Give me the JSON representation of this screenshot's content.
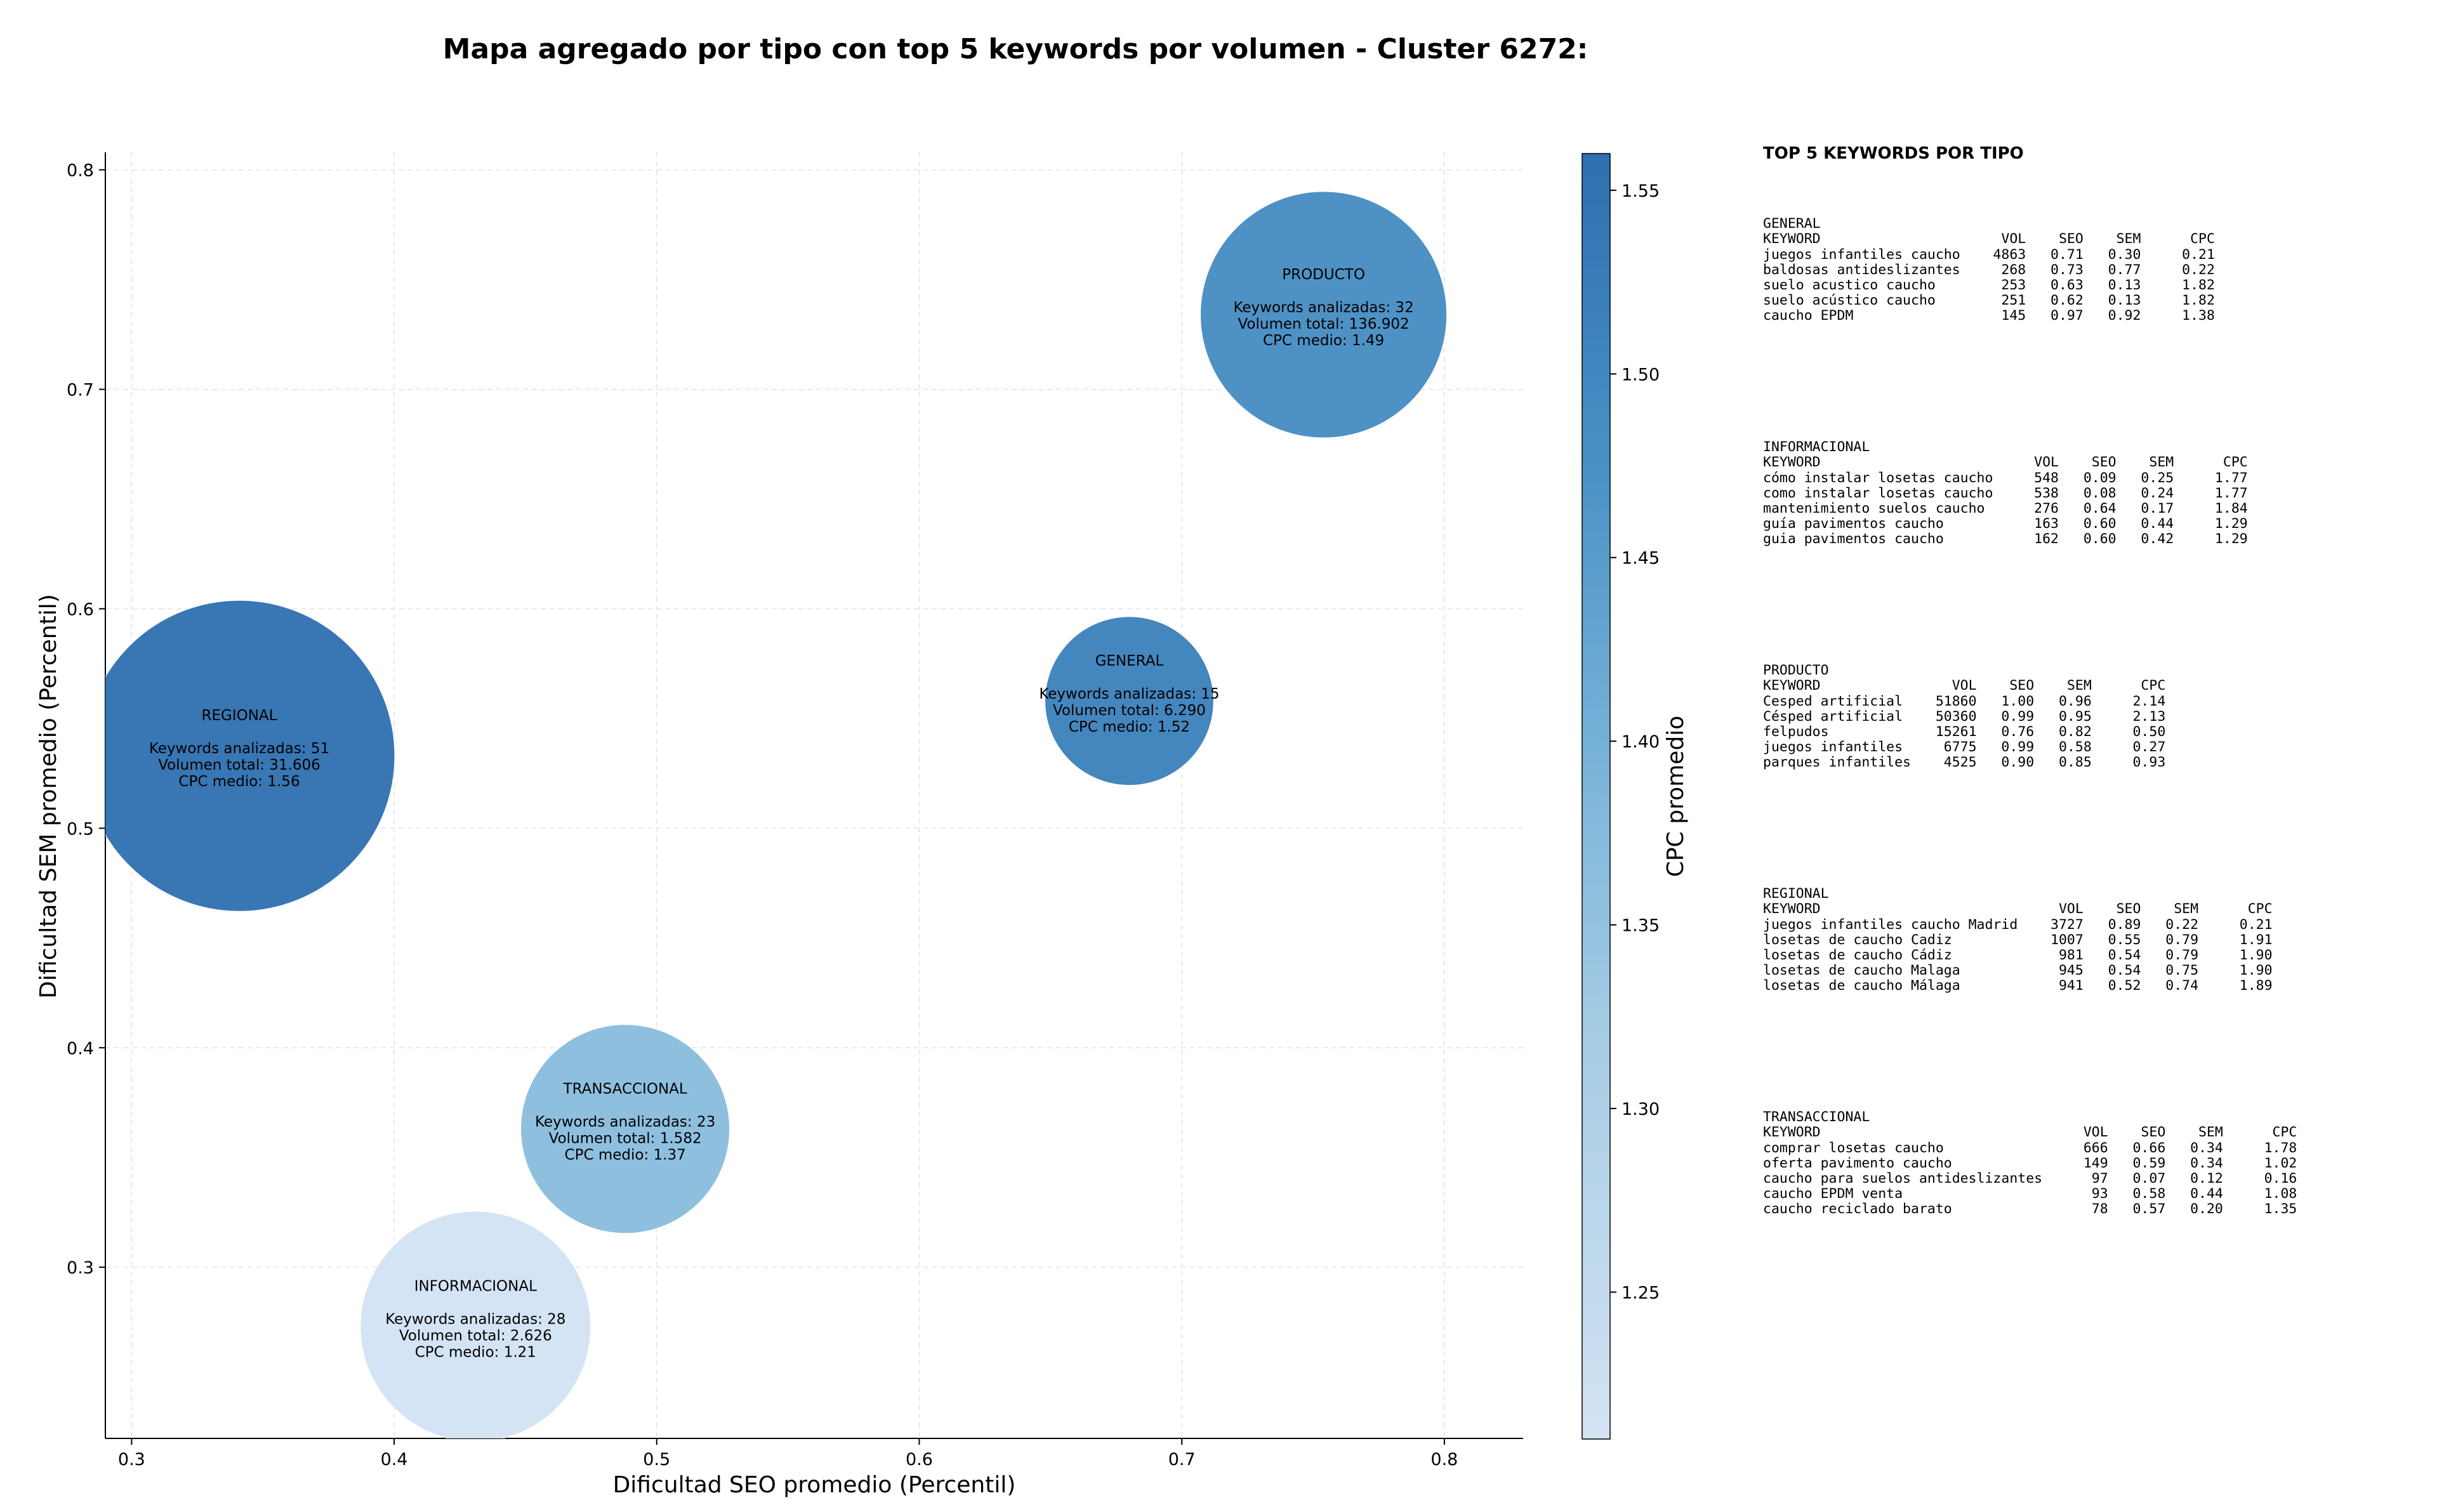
{
  "title": "Mapa agregado por tipo con top 5 keywords por volumen - Cluster 6272:",
  "chart_data": {
    "type": "scatter",
    "title": "Mapa agregado por tipo con top 5 keywords por volumen - Cluster 6272:",
    "xlabel": "Dificultad SEO promedio (Percentil)",
    "ylabel": "Dificultad SEM promedio (Percentil)",
    "xlim": [
      0.29,
      0.83
    ],
    "ylim": [
      0.222,
      0.808
    ],
    "xticks": [
      "0.3",
      "0.4",
      "0.5",
      "0.6",
      "0.7",
      "0.8"
    ],
    "yticks": [
      "0.3",
      "0.4",
      "0.5",
      "0.6",
      "0.7",
      "0.8"
    ],
    "grid": true,
    "colorbar": {
      "label": "CPC promedio",
      "range": [
        1.21,
        1.56
      ],
      "ticks": [
        "1.25",
        "1.30",
        "1.35",
        "1.40",
        "1.45",
        "1.50",
        "1.55"
      ]
    },
    "points": [
      {
        "type_label": "PRODUCTO",
        "x": 0.754,
        "y": 0.734,
        "keywords_text": "Keywords analizadas: 32",
        "volume_text": "Volumen total: 136.902",
        "cpc_text": "CPC medio: 1.49",
        "keywords": 32,
        "volume": 136902,
        "cpc": 1.49
      },
      {
        "type_label": "GENERAL",
        "x": 0.68,
        "y": 0.558,
        "keywords_text": "Keywords analizadas: 15",
        "volume_text": "Volumen total: 6.290",
        "cpc_text": "CPC medio: 1.52",
        "keywords": 15,
        "volume": 6290,
        "cpc": 1.52
      },
      {
        "type_label": "REGIONAL",
        "x": 0.341,
        "y": 0.533,
        "keywords_text": "Keywords analizadas: 51",
        "volume_text": "Volumen total: 31.606",
        "cpc_text": "CPC medio: 1.56",
        "keywords": 51,
        "volume": 31606,
        "cpc": 1.56
      },
      {
        "type_label": "TRANSACCIONAL",
        "x": 0.488,
        "y": 0.363,
        "keywords_text": "Keywords analizadas: 23",
        "volume_text": "Volumen total: 1.582",
        "cpc_text": "CPC medio: 1.37",
        "keywords": 23,
        "volume": 1582,
        "cpc": 1.37
      },
      {
        "type_label": "INFORMACIONAL",
        "x": 0.431,
        "y": 0.273,
        "keywords_text": "Keywords analizadas: 28",
        "volume_text": "Volumen total: 2.626",
        "cpc_text": "CPC medio: 1.21",
        "keywords": 28,
        "volume": 2626,
        "cpc": 1.21
      }
    ]
  },
  "side_panel": {
    "title": "TOP 5 KEYWORDS POR TIPO",
    "header_label": "KEYWORD",
    "col_headers": [
      "VOL",
      "SEO",
      "SEM",
      "CPC"
    ],
    "blocks": [
      {
        "name": "GENERAL",
        "rows": [
          {
            "keyword": "juegos infantiles caucho",
            "vol": "4863",
            "seo": "0.71",
            "sem": "0.30",
            "cpc": "0.21"
          },
          {
            "keyword": "baldosas antideslizantes",
            "vol": "268",
            "seo": "0.73",
            "sem": "0.77",
            "cpc": "0.22"
          },
          {
            "keyword": "suelo acustico caucho",
            "vol": "253",
            "seo": "0.63",
            "sem": "0.13",
            "cpc": "1.82"
          },
          {
            "keyword": "suelo acústico caucho",
            "vol": "251",
            "seo": "0.62",
            "sem": "0.13",
            "cpc": "1.82"
          },
          {
            "keyword": "caucho EPDM",
            "vol": "145",
            "seo": "0.97",
            "sem": "0.92",
            "cpc": "1.38"
          }
        ]
      },
      {
        "name": "INFORMACIONAL",
        "rows": [
          {
            "keyword": "cómo instalar losetas caucho",
            "vol": "548",
            "seo": "0.09",
            "sem": "0.25",
            "cpc": "1.77"
          },
          {
            "keyword": "como instalar losetas caucho",
            "vol": "538",
            "seo": "0.08",
            "sem": "0.24",
            "cpc": "1.77"
          },
          {
            "keyword": "mantenimiento suelos caucho",
            "vol": "276",
            "seo": "0.64",
            "sem": "0.17",
            "cpc": "1.84"
          },
          {
            "keyword": "guía pavimentos caucho",
            "vol": "163",
            "seo": "0.60",
            "sem": "0.44",
            "cpc": "1.29"
          },
          {
            "keyword": "guia pavimentos caucho",
            "vol": "162",
            "seo": "0.60",
            "sem": "0.42",
            "cpc": "1.29"
          }
        ]
      },
      {
        "name": "PRODUCTO",
        "rows": [
          {
            "keyword": "Cesped artificial",
            "vol": "51860",
            "seo": "1.00",
            "sem": "0.96",
            "cpc": "2.14"
          },
          {
            "keyword": "Césped artificial",
            "vol": "50360",
            "seo": "0.99",
            "sem": "0.95",
            "cpc": "2.13"
          },
          {
            "keyword": "felpudos",
            "vol": "15261",
            "seo": "0.76",
            "sem": "0.82",
            "cpc": "0.50"
          },
          {
            "keyword": "juegos infantiles",
            "vol": "6775",
            "seo": "0.99",
            "sem": "0.58",
            "cpc": "0.27"
          },
          {
            "keyword": "parques infantiles",
            "vol": "4525",
            "seo": "0.90",
            "sem": "0.85",
            "cpc": "0.93"
          }
        ]
      },
      {
        "name": "REGIONAL",
        "rows": [
          {
            "keyword": "juegos infantiles caucho Madrid",
            "vol": "3727",
            "seo": "0.89",
            "sem": "0.22",
            "cpc": "0.21"
          },
          {
            "keyword": "losetas de caucho Cadiz",
            "vol": "1007",
            "seo": "0.55",
            "sem": "0.79",
            "cpc": "1.91"
          },
          {
            "keyword": "losetas de caucho Cádiz",
            "vol": "981",
            "seo": "0.54",
            "sem": "0.79",
            "cpc": "1.90"
          },
          {
            "keyword": "losetas de caucho Malaga",
            "vol": "945",
            "seo": "0.54",
            "sem": "0.75",
            "cpc": "1.90"
          },
          {
            "keyword": "losetas de caucho Málaga",
            "vol": "941",
            "seo": "0.52",
            "sem": "0.74",
            "cpc": "1.89"
          }
        ]
      },
      {
        "name": "TRANSACCIONAL",
        "rows": [
          {
            "keyword": "comprar losetas caucho",
            "vol": "666",
            "seo": "0.66",
            "sem": "0.34",
            "cpc": "1.78"
          },
          {
            "keyword": "oferta pavimento caucho",
            "vol": "149",
            "seo": "0.59",
            "sem": "0.34",
            "cpc": "1.02"
          },
          {
            "keyword": "caucho para suelos antideslizantes",
            "vol": "97",
            "seo": "0.07",
            "sem": "0.12",
            "cpc": "0.16"
          },
          {
            "keyword": "caucho EPDM venta",
            "vol": "93",
            "seo": "0.58",
            "sem": "0.44",
            "cpc": "1.08"
          },
          {
            "keyword": "caucho reciclado barato",
            "vol": "78",
            "seo": "0.57",
            "sem": "0.20",
            "cpc": "1.35"
          }
        ]
      }
    ]
  }
}
